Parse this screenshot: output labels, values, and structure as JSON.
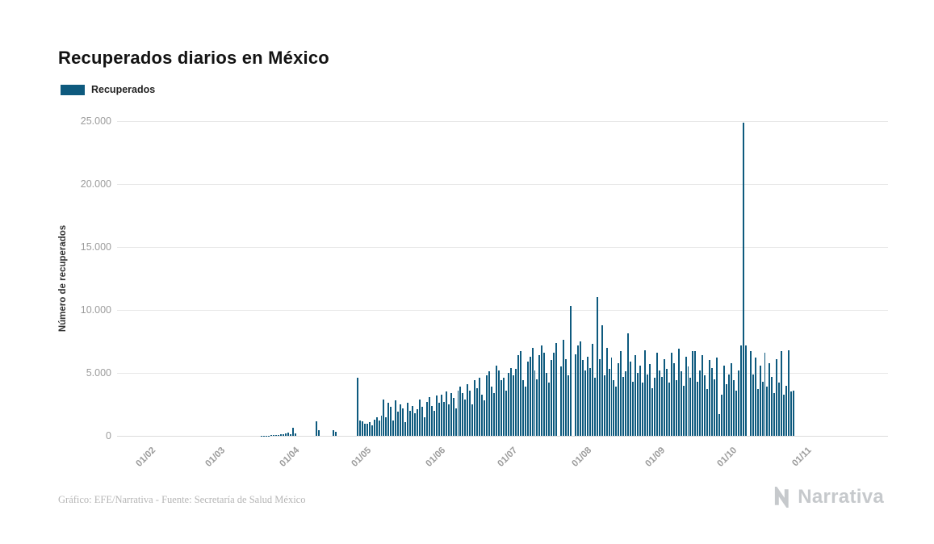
{
  "title": "Recuperados diarios en México",
  "legend": {
    "label": "Recuperados",
    "swatch_color": "#0e5a7e"
  },
  "y_axis": {
    "label": "Número de recuperados",
    "ticks": [
      "25.000",
      "20.000",
      "15.000",
      "10.000",
      "5.000",
      "0"
    ]
  },
  "footer": {
    "credit": "Gráfico: EFE/Narrativa - Fuente: Secretaría de Salud México",
    "brand": "Narrativa"
  },
  "chart_data": {
    "type": "bar",
    "title": "Recuperados diarios en México",
    "series_name": "Recuperados",
    "xlabel": "",
    "ylabel": "Número de recuperados",
    "ylim": [
      0,
      25000
    ],
    "y_tick_step": 5000,
    "bar_color": "#0e5a7e",
    "frequency": "daily",
    "start_date": "01/02",
    "pad_days_left": 14,
    "domain_days": 322,
    "x_ticks": [
      {
        "label": "01/02",
        "day": 0
      },
      {
        "label": "01/03",
        "day": 29
      },
      {
        "label": "01/04",
        "day": 60
      },
      {
        "label": "01/05",
        "day": 90
      },
      {
        "label": "01/06",
        "day": 121
      },
      {
        "label": "01/07",
        "day": 151
      },
      {
        "label": "01/08",
        "day": 182
      },
      {
        "label": "01/09",
        "day": 213
      },
      {
        "label": "01/10",
        "day": 243
      },
      {
        "label": "01/11",
        "day": 274
      }
    ],
    "values": [
      0,
      0,
      0,
      0,
      0,
      0,
      0,
      0,
      0,
      0,
      0,
      0,
      0,
      0,
      0,
      0,
      0,
      0,
      0,
      0,
      0,
      0,
      0,
      0,
      0,
      0,
      0,
      0,
      0,
      0,
      0,
      0,
      0,
      0,
      0,
      0,
      0,
      0,
      0,
      0,
      0,
      0,
      0,
      0,
      0,
      4,
      9,
      14,
      20,
      28,
      38,
      55,
      75,
      95,
      120,
      150,
      190,
      230,
      110,
      620,
      180,
      0,
      0,
      0,
      0,
      0,
      0,
      0,
      0,
      1150,
      460,
      0,
      0,
      0,
      0,
      0,
      430,
      350,
      0,
      0,
      0,
      0,
      0,
      0,
      0,
      0,
      4620,
      1250,
      1180,
      950,
      980,
      1120,
      840,
      1300,
      1500,
      1250,
      1600,
      2900,
      1450,
      2600,
      2300,
      1200,
      2800,
      1900,
      2500,
      2200,
      1100,
      2600,
      2000,
      2400,
      1800,
      2100,
      2900,
      2300,
      1500,
      2700,
      3100,
      2400,
      2000,
      3200,
      2600,
      3300,
      2700,
      3500,
      2500,
      3400,
      3000,
      2200,
      3600,
      3900,
      3400,
      2900,
      4100,
      3600,
      2500,
      4400,
      3800,
      4600,
      3300,
      2800,
      4800,
      5100,
      3900,
      3400,
      5600,
      5200,
      4400,
      4600,
      3600,
      5000,
      5400,
      4800,
      5300,
      6400,
      6700,
      4400,
      3900,
      5900,
      6300,
      7000,
      5200,
      4500,
      6400,
      7200,
      6600,
      5000,
      4200,
      6000,
      6600,
      7400,
      0,
      5500,
      7600,
      6100,
      4800,
      10300,
      0,
      6500,
      7200,
      7500,
      6000,
      5200,
      6300,
      5400,
      7300,
      4600,
      11000,
      6100,
      8800,
      4800,
      7000,
      5300,
      6200,
      4400,
      3900,
      5800,
      6700,
      4700,
      5100,
      8150,
      5900,
      4300,
      6400,
      5000,
      5600,
      4200,
      6800,
      4900,
      5700,
      3800,
      4600,
      6600,
      5200,
      4700,
      6100,
      5300,
      4200,
      6600,
      5800,
      4400,
      6900,
      5100,
      4000,
      6300,
      5500,
      4600,
      6700,
      6700,
      4300,
      5200,
      6400,
      4800,
      3700,
      6000,
      5400,
      4500,
      6200,
      1700,
      3300,
      5600,
      4100,
      4900,
      5800,
      4400,
      3600,
      5200,
      7200,
      24900,
      7200,
      0,
      6700,
      4900,
      6200,
      3700,
      5600,
      4300,
      6600,
      3900,
      5800,
      4700,
      3400,
      6100,
      4200,
      6700,
      3300,
      4000,
      6800,
      3500,
      3600,
      0,
      0,
      0,
      0,
      0
    ]
  }
}
